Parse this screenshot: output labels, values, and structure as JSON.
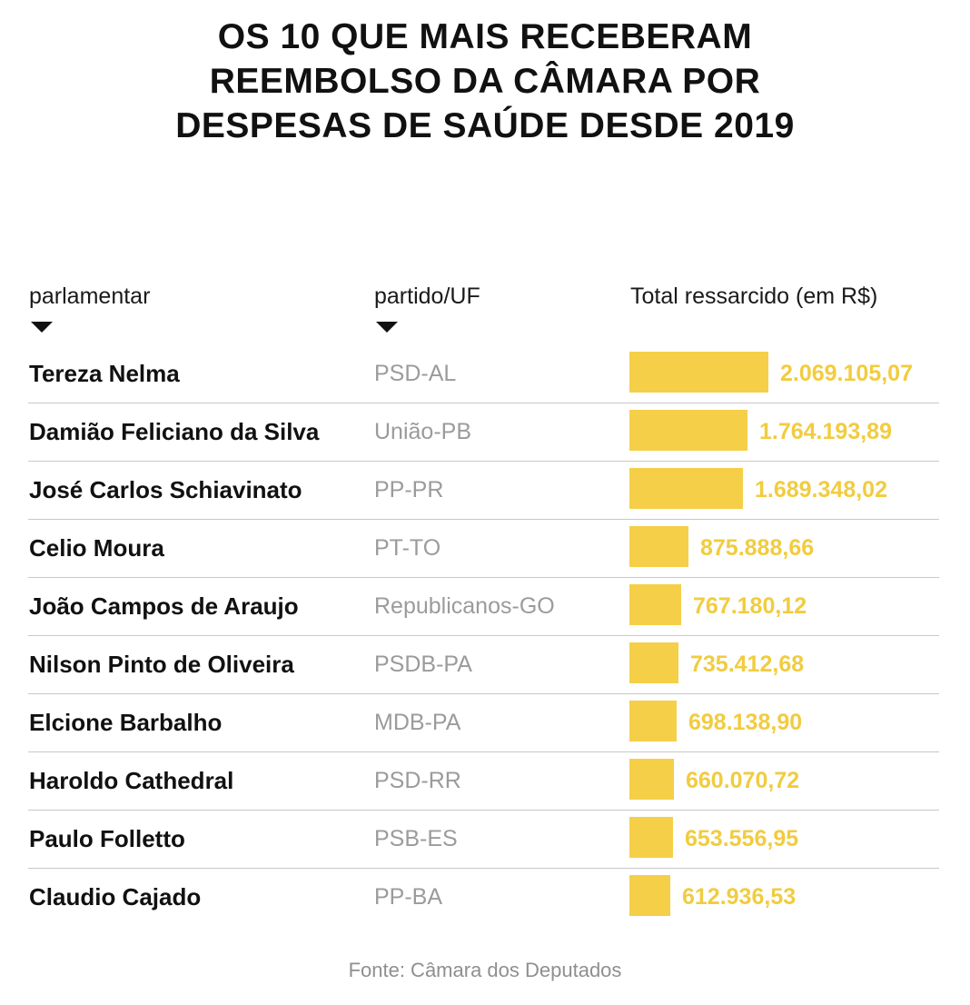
{
  "title_lines": [
    "OS 10 QUE MAIS RECEBERAM",
    "REEMBOLSO DA CÂMARA POR",
    "DESPESAS DE SAÚDE DESDE 2019"
  ],
  "columns": {
    "name": "parlamentar",
    "party": "partido/UF",
    "total": "Total ressarcido (em R$)"
  },
  "source": "Fonte: Câmara dos Deputados",
  "colors": {
    "bar": "#f5cf48",
    "value_text": "#f1cc3f",
    "party_text": "#9b9b9b"
  },
  "icons": {
    "sort": "triangle-down"
  },
  "chart_data": {
    "type": "bar",
    "orientation": "horizontal",
    "title": "OS 10 QUE MAIS RECEBERAM REEMBOLSO DA CÂMARA POR DESPESAS DE SAÚDE DESDE 2019",
    "xlabel": "Total ressarcido (em R$)",
    "ylabel": "",
    "categories": [
      "Tereza Nelma",
      "Damião Feliciano da Silva",
      "José Carlos Schiavinato",
      "Celio Moura",
      "João Campos de Araujo",
      "Nilson Pinto de Oliveira",
      "Elcione Barbalho",
      "Haroldo Cathedral",
      "Paulo Folletto",
      "Claudio Cajado"
    ],
    "parties": [
      "PSD-AL",
      "União-PB",
      "PP-PR",
      "PT-TO",
      "Republicanos-GO",
      "PSDB-PA",
      "MDB-PA",
      "PSD-RR",
      "PSB-ES",
      "PP-BA"
    ],
    "values": [
      2069105.07,
      1764193.89,
      1689348.02,
      875888.66,
      767180.12,
      735412.68,
      698138.9,
      660070.72,
      653556.95,
      612936.53
    ],
    "value_labels": [
      "2.069.105,07",
      "1.764.193,89",
      "1.689.348,02",
      "875.888,66",
      "767.180,12",
      "735.412,68",
      "698.138,90",
      "660.070,72",
      "653.556,95",
      "612.936,53"
    ]
  }
}
